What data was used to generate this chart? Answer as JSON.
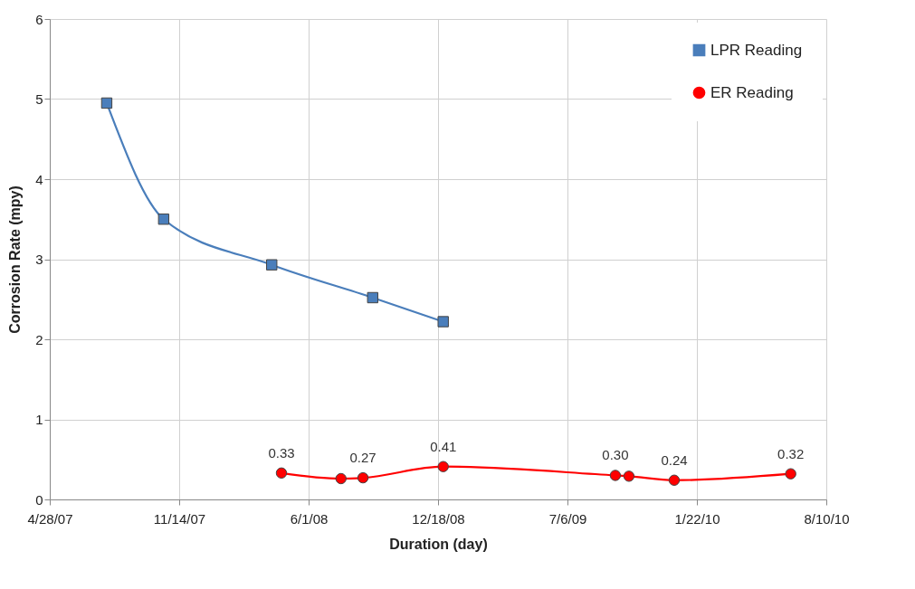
{
  "chart_data": {
    "type": "line",
    "xlabel": "Duration (day)",
    "ylabel": "Corrosion Rate (mpy)",
    "xlim": [
      "2007-04-28",
      "2010-08-10"
    ],
    "xticks": [
      {
        "value": "2007-04-28",
        "label": "4/28/07"
      },
      {
        "value": "2007-11-14",
        "label": "11/14/07"
      },
      {
        "value": "2008-06-01",
        "label": "6/1/08"
      },
      {
        "value": "2008-12-18",
        "label": "12/18/08"
      },
      {
        "value": "2009-07-06",
        "label": "7/6/09"
      },
      {
        "value": "2010-01-22",
        "label": "1/22/10"
      },
      {
        "value": "2010-08-10",
        "label": "8/10/10"
      }
    ],
    "ylim": [
      0,
      6
    ],
    "yticks": [
      0,
      1,
      2,
      3,
      4,
      5,
      6
    ],
    "grid": true,
    "legend": "top right",
    "series": [
      {
        "name": "LPR Reading",
        "color": "#4a7ebb",
        "marker": "square",
        "x": [
          "2007-07-25",
          "2007-10-21",
          "2008-04-05",
          "2008-09-08",
          "2008-12-26"
        ],
        "values": [
          4.95,
          3.5,
          2.93,
          2.52,
          2.22
        ]
      },
      {
        "name": "ER Reading",
        "color": "#ff0000",
        "marker": "circle",
        "x": [
          "2008-04-20",
          "2008-07-21",
          "2008-08-24",
          "2008-12-26",
          "2009-09-18",
          "2009-10-09",
          "2009-12-18",
          "2010-06-16"
        ],
        "values": [
          0.33,
          0.26,
          0.27,
          0.41,
          0.3,
          0.29,
          0.24,
          0.32
        ],
        "value_labels": [
          "0.33",
          null,
          "0.27",
          "0.41",
          "0.30",
          null,
          "0.24",
          "0.32"
        ]
      }
    ]
  }
}
